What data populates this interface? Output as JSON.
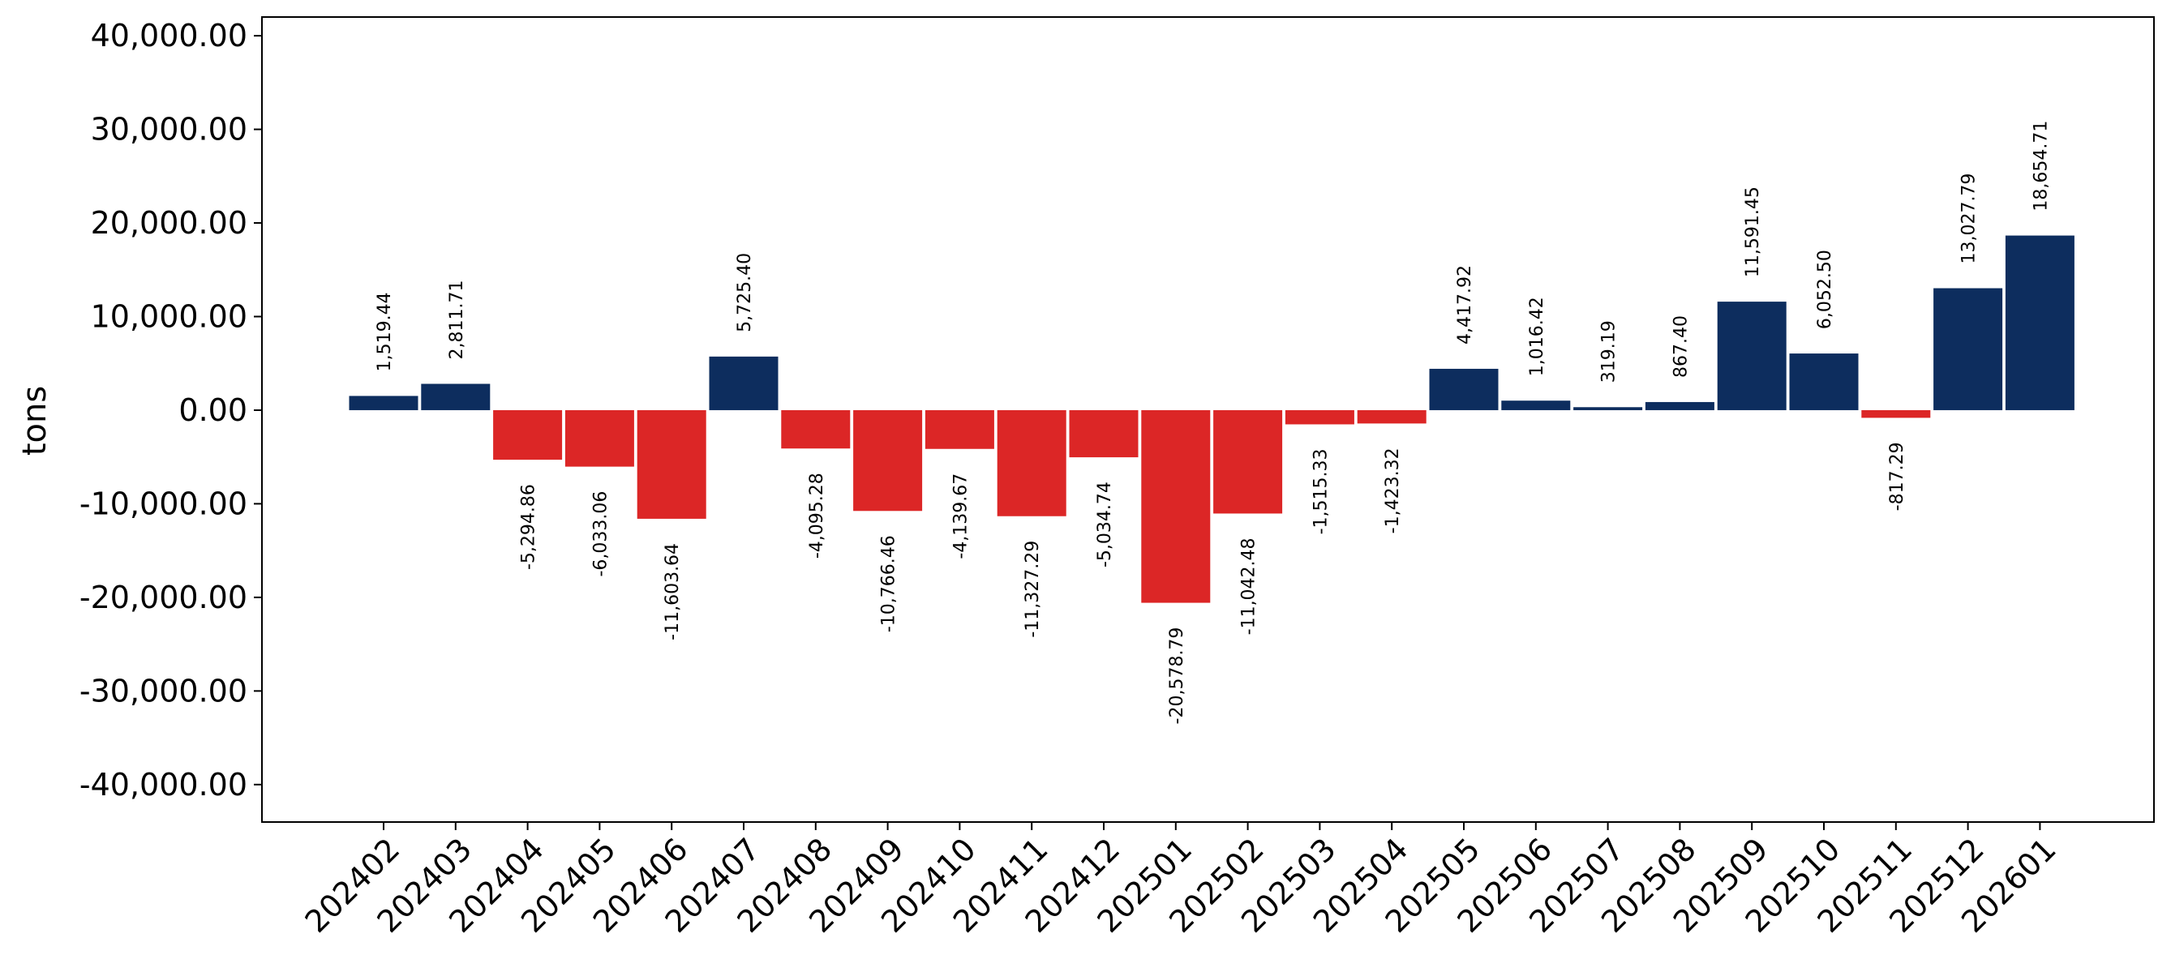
{
  "chart_data": {
    "type": "bar",
    "ylabel": "tons",
    "xlabel": "",
    "ylim": [
      -44000,
      42000
    ],
    "yticks": [
      -40000,
      -30000,
      -20000,
      -10000,
      0,
      10000,
      20000,
      30000,
      40000
    ],
    "ytick_labels": [
      "-40,000.00",
      "-30,000.00",
      "-20,000.00",
      "-10,000.00",
      "0.00",
      "10,000.00",
      "20,000.00",
      "30,000.00",
      "40,000.00"
    ],
    "categories": [
      "202402",
      "202403",
      "202404",
      "202405",
      "202406",
      "202407",
      "202408",
      "202409",
      "202410",
      "202411",
      "202412",
      "202501",
      "202502",
      "202503",
      "202504",
      "202505",
      "202506",
      "202507",
      "202508",
      "202509",
      "202510",
      "202511",
      "202512",
      "202601"
    ],
    "values": [
      1519.44,
      2811.71,
      -5294.86,
      -6033.06,
      -11603.64,
      5725.4,
      -4095.28,
      -10766.46,
      -4139.67,
      -11327.29,
      -5034.74,
      -20578.79,
      -11042.48,
      -1515.33,
      -1423.32,
      4417.92,
      1016.42,
      319.19,
      867.4,
      11591.45,
      6052.5,
      -817.29,
      13027.79,
      18654.71
    ],
    "value_labels": [
      "1,519.44",
      "2,811.71",
      "-5,294.86",
      "-6,033.06",
      "-11,603.64",
      "5,725.40",
      "-4,095.28",
      "-10,766.46",
      "-4,139.67",
      "-11,327.29",
      "-5,034.74",
      "-20,578.79",
      "-11,042.48",
      "-1,515.33",
      "-1,423.32",
      "4,417.92",
      "1,016.42",
      "319.19",
      "867.40",
      "11,591.45",
      "6,052.50",
      "-817.29",
      "13,027.79",
      "18,654.71"
    ],
    "colors": {
      "positive": "#0d2d5e",
      "negative": "#dc2626"
    },
    "grid": false,
    "legend": "none"
  }
}
